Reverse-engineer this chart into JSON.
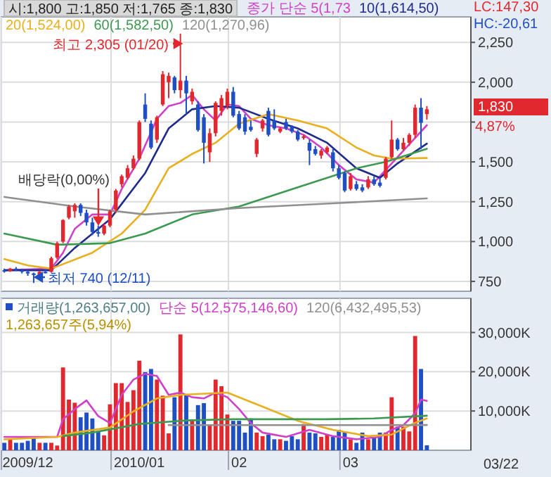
{
  "chart_data": [
    {
      "type": "candlestick",
      "title": "시:1,800 고:1,850 저:1,765 종:1,830",
      "categories": [
        null,
        null,
        null,
        null,
        "2009/12",
        null,
        null,
        null,
        null,
        null,
        null,
        null,
        null,
        null,
        null,
        null,
        null,
        null,
        null,
        null,
        null,
        null,
        null,
        "2010/01",
        null,
        null,
        null,
        null,
        null,
        null,
        null,
        null,
        null,
        null,
        null,
        null,
        null,
        null,
        null,
        null,
        "02",
        null,
        null,
        null,
        null,
        null,
        null,
        null,
        null,
        null,
        null,
        null,
        null,
        null,
        null,
        null,
        null,
        null,
        null,
        "03",
        null,
        null,
        null,
        null,
        null,
        null,
        null,
        null,
        null,
        null,
        null,
        null,
        null,
        null,
        null,
        null,
        null,
        null,
        null,
        null
      ],
      "ohlc": [
        [
          820,
          830,
          805,
          815
        ],
        [
          815,
          835,
          810,
          830
        ],
        [
          830,
          840,
          815,
          820
        ],
        [
          820,
          830,
          800,
          810
        ],
        [
          810,
          820,
          785,
          800
        ],
        [
          800,
          805,
          740,
          790
        ],
        [
          790,
          815,
          785,
          810
        ],
        [
          810,
          825,
          800,
          805
        ],
        [
          810,
          905,
          805,
          895
        ],
        [
          900,
          1000,
          890,
          990
        ],
        [
          1000,
          1140,
          990,
          1135
        ],
        [
          1150,
          1230,
          1140,
          1220
        ],
        [
          1190,
          1240,
          1150,
          1230
        ],
        [
          1230,
          1240,
          1160,
          1180
        ],
        [
          1180,
          1200,
          1100,
          1120
        ],
        [
          1120,
          1150,
          1040,
          1060
        ],
        [
          1060,
          1100,
          1030,
          1050
        ],
        [
          1050,
          1110,
          1040,
          1100
        ],
        [
          1100,
          1200,
          1090,
          1190
        ],
        [
          1200,
          1330,
          1180,
          1320
        ],
        [
          1360,
          1420,
          1340,
          1410
        ],
        [
          1400,
          1480,
          1390,
          1460
        ],
        [
          1460,
          1540,
          1450,
          1520
        ],
        [
          1520,
          1760,
          1510,
          1750
        ],
        [
          1860,
          1930,
          1750,
          1770
        ],
        [
          1740,
          1760,
          1580,
          1590
        ],
        [
          1640,
          1790,
          1620,
          1780
        ],
        [
          1860,
          2070,
          1850,
          2050
        ],
        [
          2000,
          2060,
          1900,
          2040
        ],
        [
          2030,
          2040,
          1930,
          1950
        ],
        [
          1950,
          2305,
          1900,
          2010
        ],
        [
          2010,
          2040,
          1800,
          1930
        ],
        [
          1880,
          1960,
          1860,
          1940
        ],
        [
          1860,
          1880,
          1690,
          1700
        ],
        [
          1780,
          1800,
          1490,
          1620
        ],
        [
          1560,
          1710,
          1500,
          1680
        ],
        [
          1680,
          1880,
          1660,
          1870
        ],
        [
          1820,
          1920,
          1790,
          1900
        ],
        [
          1850,
          1960,
          1830,
          1940
        ],
        [
          1940,
          1970,
          1780,
          1790
        ],
        [
          1800,
          1820,
          1700,
          1710
        ],
        [
          1780,
          1800,
          1670,
          1690
        ],
        [
          1720,
          1760,
          1690,
          1700
        ],
        [
          1550,
          1650,
          1530,
          1640
        ],
        [
          1710,
          1770,
          1690,
          1760
        ],
        [
          1820,
          1840,
          1660,
          1670
        ],
        [
          1760,
          1830,
          1700,
          1710
        ],
        [
          1690,
          1720,
          1680,
          1710
        ],
        [
          1750,
          1770,
          1700,
          1710
        ],
        [
          1720,
          1730,
          1680,
          1690
        ],
        [
          1690,
          1700,
          1630,
          1640
        ],
        [
          1650,
          1670,
          1640,
          1660
        ],
        [
          1620,
          1640,
          1480,
          1570
        ],
        [
          1580,
          1600,
          1540,
          1550
        ],
        [
          1540,
          1580,
          1520,
          1570
        ],
        [
          1560,
          1600,
          1550,
          1590
        ],
        [
          1560,
          1580,
          1440,
          1460
        ],
        [
          1460,
          1480,
          1390,
          1400
        ],
        [
          1430,
          1440,
          1310,
          1320
        ],
        [
          1330,
          1430,
          1320,
          1410
        ],
        [
          1360,
          1380,
          1320,
          1330
        ],
        [
          1340,
          1360,
          1310,
          1320
        ],
        [
          1340,
          1410,
          1330,
          1390
        ],
        [
          1390,
          1410,
          1350,
          1360
        ],
        [
          1370,
          1400,
          1340,
          1350
        ],
        [
          1400,
          1530,
          1390,
          1520
        ],
        [
          1530,
          1760,
          1520,
          1640
        ],
        [
          1640,
          1650,
          1570,
          1580
        ],
        [
          1580,
          1650,
          1570,
          1620
        ],
        [
          1620,
          1680,
          1600,
          1670
        ],
        [
          1670,
          1860,
          1650,
          1840
        ],
        [
          1840,
          1900,
          1580,
          1745
        ],
        [
          1800,
          1850,
          1765,
          1830
        ],
        null,
        null,
        null,
        null,
        null,
        null,
        null
      ],
      "series": [
        {
          "name": "종가 단순 5(1,73",
          "type": "line",
          "color": "#d040c8",
          "values": [
            820,
            null,
            null,
            null,
            null,
            null,
            null,
            null,
            830,
            null,
            930,
            null,
            1080,
            null,
            null,
            1170,
            null,
            null,
            1170,
            null,
            1330,
            null,
            null,
            1520,
            null,
            null,
            1770,
            null,
            1850,
            null,
            1870,
            null,
            1920,
            null,
            1830,
            null,
            1760,
            null,
            1860,
            null,
            1850,
            null,
            1770,
            null,
            null,
            1730,
            null,
            null,
            1710,
            null,
            null,
            1670,
            null,
            null,
            1590,
            null,
            null,
            1480,
            null,
            null,
            1390,
            null,
            null,
            1370,
            null,
            null,
            1490,
            null,
            null,
            1610,
            null,
            null,
            1730,
            null,
            null,
            null,
            null,
            null,
            null,
            null
          ]
        },
        {
          "name": "10(1,614,50)",
          "type": "line",
          "color": "#1e2a8c",
          "values": [
            820,
            null,
            null,
            null,
            null,
            null,
            null,
            null,
            820,
            null,
            null,
            null,
            960,
            null,
            null,
            null,
            null,
            null,
            1140,
            null,
            null,
            null,
            null,
            null,
            1430,
            null,
            null,
            null,
            1710,
            null,
            null,
            null,
            1830,
            null,
            null,
            null,
            1850,
            null,
            null,
            null,
            1840,
            null,
            null,
            null,
            null,
            1770,
            null,
            null,
            null,
            null,
            1710,
            null,
            null,
            null,
            null,
            1620,
            null,
            null,
            null,
            null,
            1460,
            null,
            null,
            null,
            1400,
            null,
            null,
            1490,
            null,
            null,
            null,
            null,
            1614.5,
            null,
            null,
            null,
            null,
            null,
            null,
            null
          ]
        },
        {
          "name": "20(1,524,00)",
          "type": "line",
          "color": "#e8b020",
          "values": [
            890,
            null,
            null,
            null,
            850,
            null,
            null,
            null,
            830,
            null,
            null,
            null,
            null,
            null,
            null,
            930,
            null,
            null,
            null,
            null,
            1050,
            null,
            null,
            null,
            1200,
            null,
            null,
            null,
            1460,
            null,
            null,
            null,
            1550,
            null,
            null,
            null,
            1620,
            null,
            null,
            null,
            1740,
            null,
            null,
            null,
            null,
            1800,
            null,
            null,
            null,
            null,
            1760,
            null,
            null,
            null,
            null,
            1710,
            null,
            null,
            null,
            null,
            1590,
            null,
            null,
            1540,
            null,
            null,
            1520,
            null,
            null,
            null,
            null,
            null,
            1524,
            null,
            null,
            null,
            null,
            null,
            null,
            null
          ]
        },
        {
          "name": "60(1,582,50)",
          "type": "line",
          "color": "#3c9a50",
          "values": [
            1050,
            null,
            null,
            null,
            null,
            null,
            null,
            null,
            null,
            980,
            null,
            null,
            null,
            null,
            null,
            null,
            null,
            null,
            990,
            null,
            null,
            null,
            null,
            null,
            1050,
            null,
            null,
            null,
            null,
            null,
            null,
            null,
            1170,
            null,
            null,
            null,
            null,
            null,
            null,
            null,
            1220,
            null,
            null,
            null,
            null,
            null,
            null,
            null,
            null,
            null,
            1340,
            null,
            null,
            null,
            null,
            null,
            null,
            null,
            null,
            null,
            1460,
            null,
            null,
            null,
            null,
            1500,
            null,
            null,
            null,
            null,
            null,
            null,
            1582.5,
            null,
            null,
            null,
            null,
            null,
            null,
            null
          ]
        },
        {
          "name": "120(1,270,96)",
          "type": "line",
          "color": "#909090",
          "values": [
            1280,
            null,
            null,
            null,
            null,
            null,
            null,
            null,
            null,
            null,
            null,
            null,
            1220,
            null,
            null,
            null,
            null,
            null,
            null,
            null,
            null,
            null,
            null,
            null,
            1170,
            null,
            null,
            null,
            null,
            null,
            null,
            null,
            null,
            null,
            null,
            null,
            null,
            null,
            null,
            null,
            1210,
            null,
            null,
            null,
            null,
            null,
            null,
            null,
            null,
            null,
            null,
            null,
            null,
            null,
            null,
            null,
            1240,
            null,
            null,
            null,
            null,
            null,
            null,
            null,
            null,
            null,
            null,
            null,
            null,
            null,
            null,
            null,
            1270.96,
            null,
            null,
            null,
            null,
            null,
            null,
            null
          ]
        }
      ],
      "ylim": [
        688,
        2410
      ],
      "yticks": [
        {
          "value": 750,
          "label": "750"
        },
        {
          "value": 1000,
          "label": "1,000"
        },
        {
          "value": 1250,
          "label": "1,250"
        },
        {
          "value": 1500,
          "label": "1,500"
        },
        {
          "value": 1750,
          "label": null
        },
        {
          "value": 2000,
          "label": "2,000"
        },
        {
          "value": 2250,
          "label": "2,250"
        }
      ],
      "grid": true,
      "legend": "top left",
      "tick_labels": "y",
      "annotations": [
        "최고 2,305 (01/20)",
        "최저 740 (12/11)",
        {
          "text": "배당락(0,00%)",
          "y": 1100
        },
        "1,830",
        "4,87%",
        "LC:147,30",
        "HC:-20,61"
      ]
    },
    {
      "type": "bar",
      "categories": [
        null,
        null,
        null,
        null,
        "2009/12",
        null,
        null,
        null,
        null,
        null,
        null,
        null,
        null,
        null,
        null,
        null,
        null,
        null,
        null,
        null,
        null,
        null,
        null,
        "2010/01",
        null,
        null,
        null,
        null,
        null,
        null,
        null,
        null,
        null,
        null,
        null,
        null,
        null,
        null,
        null,
        null,
        "02",
        null,
        null,
        null,
        null,
        null,
        null,
        null,
        null,
        null,
        null,
        null,
        null,
        null,
        null,
        null,
        null,
        null,
        null,
        "03",
        null,
        null,
        null,
        null,
        null,
        null,
        null,
        null,
        null,
        null,
        null,
        null,
        null,
        null,
        null,
        null,
        null,
        null,
        null,
        null
      ],
      "series": [
        {
          "name": "거래량(1,263,657,00)",
          "type": "bar",
          "values": [
            1900,
            2800,
            1900,
            1900,
            2400,
            3100,
            1900,
            1900,
            1900,
            1200,
            21100,
            12900,
            12100,
            8400,
            9600,
            8100,
            4800,
            3800,
            11700,
            17100,
            17100,
            12300,
            15300,
            22800,
            19900,
            20700,
            18000,
            13900,
            4300,
            13500,
            29500,
            14100,
            7900,
            11500,
            12000,
            6300,
            18000,
            16300,
            9100,
            7500,
            7500,
            4500,
            8100,
            4500,
            3600,
            4000,
            2800,
            2800,
            2400,
            3600,
            2800,
            6700,
            4500,
            4300,
            3400,
            4000,
            3400,
            5200,
            4800,
            2800,
            1900,
            4500,
            2800,
            3400,
            4500,
            4500,
            13500,
            6000,
            6000,
            4800,
            29100,
            20700,
            1264,
            null,
            null,
            null,
            null,
            null,
            null,
            null
          ],
          "colors": [
            "#1f4fc4",
            "#e0282e",
            "#1f4fc4",
            "#1f4fc4",
            "#1f4fc4",
            "#1f4fc4",
            "#e0282e",
            "#1f4fc4",
            "#e0282e",
            "#e0282e",
            "#e0282e",
            "#e0282e",
            "#e0282e",
            "#1f4fc4",
            "#1f4fc4",
            "#1f4fc4",
            "#1f4fc4",
            "#e0282e",
            "#e0282e",
            "#e0282e",
            "#e0282e",
            "#e0282e",
            "#e0282e",
            "#e0282e",
            "#1f4fc4",
            "#1f4fc4",
            "#e0282e",
            "#e0282e",
            "#e0282e",
            "#1f4fc4",
            "#e0282e",
            "#1f4fc4",
            "#e0282e",
            "#1f4fc4",
            "#1f4fc4",
            "#e0282e",
            "#e0282e",
            "#e0282e",
            "#e0282e",
            "#1f4fc4",
            "#1f4fc4",
            "#1f4fc4",
            "#1f4fc4",
            "#e0282e",
            "#e0282e",
            "#1f4fc4",
            "#1f4fc4",
            "#e0282e",
            "#1f4fc4",
            "#1f4fc4",
            "#1f4fc4",
            "#e0282e",
            "#1f4fc4",
            "#1f4fc4",
            "#e0282e",
            "#e0282e",
            "#1f4fc4",
            "#1f4fc4",
            "#1f4fc4",
            "#e0282e",
            "#1f4fc4",
            "#1f4fc4",
            "#e0282e",
            "#1f4fc4",
            "#1f4fc4",
            "#e0282e",
            "#e0282e",
            "#1f4fc4",
            "#e0282e",
            "#e0282e",
            "#e0282e",
            "#1f4fc4",
            "#1f4fc4",
            null,
            null,
            null,
            null,
            null,
            null,
            null
          ]
        },
        {
          "name": "단순 5(12,575,146,60)",
          "type": "line",
          "color": "#d040c8",
          "values": [
            3400,
            null,
            null,
            null,
            null,
            null,
            null,
            null,
            null,
            3400,
            7900,
            null,
            10500,
            null,
            12700,
            null,
            8700,
            null,
            6900,
            null,
            14100,
            null,
            18000,
            null,
            19500,
            null,
            18900,
            null,
            14100,
            null,
            14700,
            null,
            13500,
            null,
            13200,
            null,
            14700,
            null,
            13500,
            null,
            10500,
            null,
            6900,
            null,
            4500,
            null,
            null,
            null,
            3400,
            null,
            null,
            null,
            5200,
            null,
            null,
            null,
            3600,
            null,
            null,
            null,
            2800,
            null,
            null,
            null,
            3400,
            null,
            5200,
            null,
            6400,
            null,
            9400,
            12900,
            12575,
            null,
            null,
            null,
            null,
            null,
            null,
            null
          ]
        },
        {
          "type": "line",
          "color": "#e8b020",
          "values": [
            2800,
            null,
            null,
            null,
            null,
            null,
            null,
            null,
            null,
            3400,
            null,
            null,
            4500,
            null,
            null,
            null,
            null,
            null,
            5800,
            null,
            null,
            null,
            9900,
            null,
            null,
            null,
            13200,
            null,
            null,
            null,
            14100,
            null,
            null,
            null,
            null,
            null,
            null,
            null,
            14700,
            null,
            null,
            null,
            null,
            null,
            11100,
            null,
            null,
            null,
            null,
            null,
            7500,
            null,
            null,
            null,
            null,
            null,
            5200,
            null,
            null,
            null,
            null,
            null,
            3600,
            null,
            null,
            null,
            4000,
            null,
            null,
            null,
            7000,
            null,
            8100,
            null,
            null,
            null,
            null,
            null,
            null,
            null
          ]
        },
        {
          "type": "line",
          "color": "#3c9a50",
          "values": [
            null,
            null,
            null,
            null,
            null,
            null,
            null,
            null,
            null,
            null,
            3600,
            null,
            null,
            null,
            null,
            4500,
            null,
            null,
            null,
            null,
            null,
            null,
            null,
            6700,
            null,
            null,
            null,
            null,
            null,
            null,
            null,
            7600,
            null,
            null,
            null,
            null,
            null,
            null,
            null,
            7900,
            null,
            null,
            null,
            null,
            null,
            null,
            null,
            7900,
            null,
            null,
            null,
            null,
            null,
            null,
            null,
            7900,
            null,
            null,
            null,
            null,
            null,
            null,
            null,
            8100,
            null,
            null,
            null,
            null,
            null,
            null,
            null,
            null,
            8800,
            null,
            null,
            null,
            null,
            null,
            null,
            null
          ]
        },
        {
          "name": "120(6,432,495,53)",
          "type": "line",
          "color": "#909090",
          "values": [
            null,
            null,
            null,
            null,
            null,
            null,
            null,
            null,
            null,
            null,
            null,
            null,
            null,
            null,
            null,
            null,
            null,
            null,
            null,
            null,
            null,
            null,
            null,
            null,
            null,
            null,
            null,
            null,
            6400,
            null,
            null,
            null,
            null,
            null,
            null,
            null,
            null,
            null,
            null,
            null,
            null,
            null,
            null,
            null,
            null,
            null,
            null,
            null,
            null,
            null,
            6400,
            null,
            null,
            null,
            null,
            null,
            null,
            null,
            null,
            null,
            null,
            null,
            null,
            null,
            null,
            null,
            null,
            null,
            null,
            null,
            null,
            null,
            6432,
            null,
            null,
            null,
            null,
            null,
            null,
            null
          ]
        }
      ],
      "ylim": [
        0,
        38700
      ],
      "yticks": [
        {
          "value": 10000,
          "label": "10,000K"
        },
        {
          "value": 20000,
          "label": "20,000K"
        },
        {
          "value": 30000,
          "label": "30,000K"
        }
      ],
      "grid": true,
      "legend": "top left",
      "annotations": [
        "1,263,657주(5,94%)",
        "03/22"
      ]
    }
  ]
}
